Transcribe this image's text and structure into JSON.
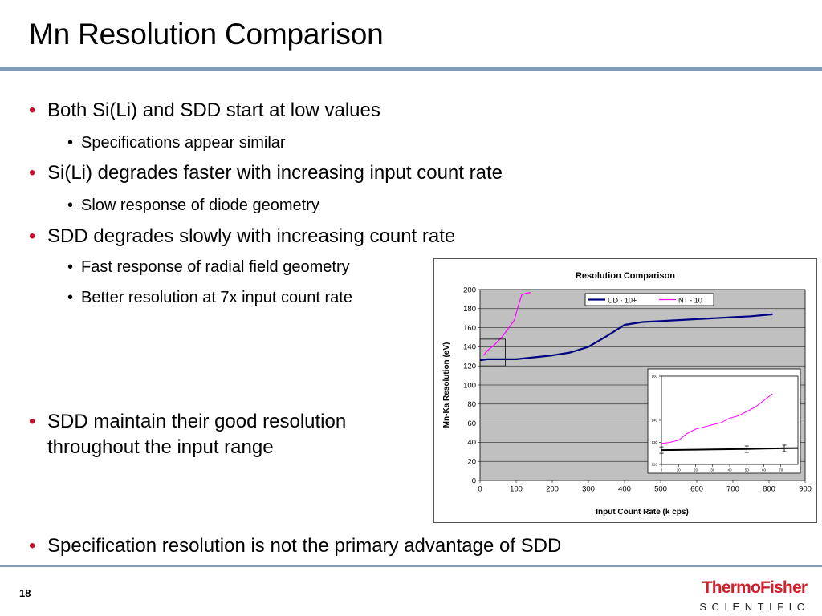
{
  "slide": {
    "title": "Mn Resolution Comparison",
    "page_number": "18"
  },
  "bullets": [
    {
      "text": "Both Si(Li) and SDD start at low values",
      "level": 1
    },
    {
      "text": "Specifications appear similar",
      "level": 2
    },
    {
      "text": "Si(Li) degrades faster with increasing input count rate",
      "level": 1
    },
    {
      "text": "Slow response of diode geometry",
      "level": 2
    },
    {
      "text": "SDD degrades slowly with increasing count rate",
      "level": 1
    },
    {
      "text": "Fast response of radial field geometry",
      "level": 2
    },
    {
      "text": "Better resolution at 7x input count rate",
      "level": 2
    },
    {
      "text": "SDD maintain their good resolution throughout the input range",
      "level": 1
    },
    {
      "text": "Specification resolution is not the primary advantage of SDD",
      "level": 1
    }
  ],
  "logo": {
    "line1": "ThermoFisher",
    "line2": "SCIENTIFIC",
    "color": "#d0202e"
  },
  "colors": {
    "accent_rule": "#7f9bb5",
    "bullet_red": "#c8102e",
    "plot_bg": "#c0c0c0",
    "series_ud": "#000080",
    "series_nt": "#ff00ff"
  },
  "chart_data": [
    {
      "type": "line",
      "title": "Resolution Comparison",
      "xlabel": "Input Count Rate (k cps)",
      "ylabel": "Mn-Ka Resolution (eV)",
      "xlim": [
        0,
        900
      ],
      "ylim": [
        0,
        200
      ],
      "xticks": [
        0,
        100,
        200,
        300,
        400,
        500,
        600,
        700,
        800,
        900
      ],
      "yticks": [
        0,
        20,
        40,
        60,
        80,
        100,
        120,
        140,
        160,
        180,
        200
      ],
      "grid": true,
      "legend": "top-right",
      "series": [
        {
          "name": "UD - 10+",
          "color": "#000080",
          "x": [
            0,
            20,
            50,
            100,
            150,
            200,
            250,
            300,
            350,
            400,
            450,
            500,
            550,
            600,
            650,
            700,
            750,
            810
          ],
          "y": [
            126,
            127,
            127,
            127,
            129,
            131,
            134,
            140,
            151,
            163,
            166,
            167,
            168,
            169,
            170,
            171,
            172,
            174
          ]
        },
        {
          "name": "NT - 10",
          "color": "#ff00ff",
          "x": [
            10,
            20,
            40,
            60,
            80,
            95,
            105,
            115,
            125,
            140
          ],
          "y": [
            131,
            136,
            142,
            150,
            160,
            168,
            182,
            194,
            196,
            197
          ]
        }
      ]
    },
    {
      "type": "line",
      "title": "",
      "xlabel": "",
      "ylabel": "",
      "xlim": [
        0,
        80
      ],
      "ylim": [
        120,
        160
      ],
      "xticks": [
        0,
        10,
        20,
        30,
        40,
        50,
        60,
        70
      ],
      "yticks": [
        120,
        130,
        140,
        160
      ],
      "series": [
        {
          "name": "",
          "color": "#000000",
          "x": [
            0,
            10,
            20,
            30,
            40,
            50,
            60,
            70,
            80
          ],
          "y": [
            126.5,
            126.6,
            126.7,
            126.8,
            126.9,
            127.0,
            127.2,
            127.3,
            127.4
          ],
          "error_x": [
            0,
            50,
            72
          ],
          "error_y": [
            126.5,
            126.9,
            127.3
          ]
        },
        {
          "name": "",
          "color": "#ff00ff",
          "x": [
            0,
            5,
            10,
            15,
            20,
            25,
            30,
            35,
            40,
            45,
            50,
            55,
            60,
            65
          ],
          "y": [
            129.5,
            130,
            131,
            134,
            136,
            137,
            138,
            139,
            141,
            142,
            144,
            146,
            149,
            152
          ]
        }
      ]
    }
  ]
}
